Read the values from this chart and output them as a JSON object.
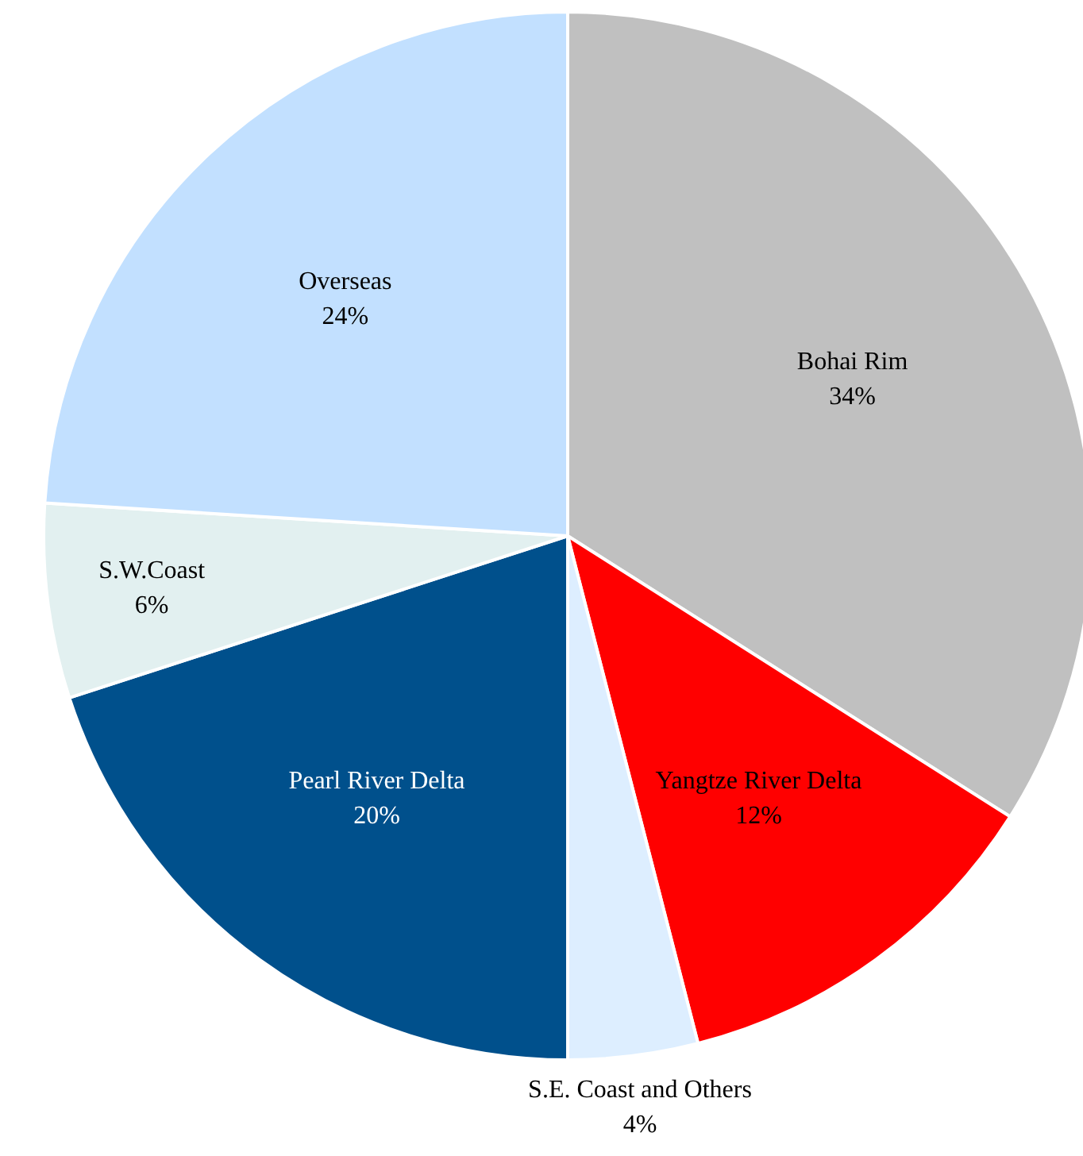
{
  "chart_data": {
    "type": "pie",
    "categories": [
      "Bohai Rim",
      "Yangtze River Delta",
      "S.E. Coast and Others",
      "Pearl River Delta",
      "S.W.Coast",
      "Overseas"
    ],
    "values": [
      34,
      12,
      4,
      20,
      6,
      24
    ],
    "value_labels": [
      "34%",
      "12%",
      "4%",
      "20%",
      "6%",
      "24%"
    ],
    "colors": [
      "#c0c0c0",
      "#ff0000",
      "#ddeeff",
      "#00508c",
      "#e2f0f0",
      "#c2e0ff"
    ],
    "legend": false
  }
}
